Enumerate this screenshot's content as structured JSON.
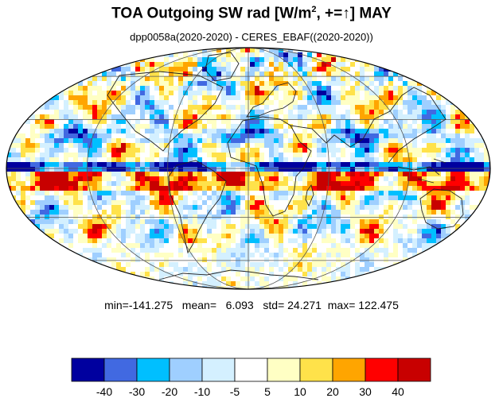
{
  "title": {
    "prefix": "TOA Outgoing SW rad [W/m",
    "superscript": "2",
    "suffix": ", +=",
    "arrow": "↑",
    "end": "] MAY"
  },
  "subtitle": "dpp0058a(2020-2020) - CERES_EBAF((2020-2020))",
  "stats": {
    "min_label": "min=",
    "min": "-141.275",
    "mean_label": "mean=",
    "mean": "6.093",
    "std_label": "std=",
    "std": "24.271",
    "max_label": "max=",
    "max": "122.475"
  },
  "map": {
    "projection": "mollweide",
    "meridians_deg": [
      -120,
      -60,
      0,
      60,
      120
    ],
    "parallels_deg": [
      -60,
      -30,
      0,
      30,
      60
    ]
  },
  "colorbar": {
    "colors": [
      "#00009f",
      "#4169e1",
      "#00bfff",
      "#9fcfff",
      "#d4f0ff",
      "#ffffff",
      "#ffffc4",
      "#ffe24a",
      "#ffa500",
      "#ff0000",
      "#c80000"
    ],
    "tick_labels": [
      "-40",
      "-30",
      "-20",
      "-10",
      "-5",
      "5",
      "10",
      "20",
      "30",
      "40"
    ]
  }
}
